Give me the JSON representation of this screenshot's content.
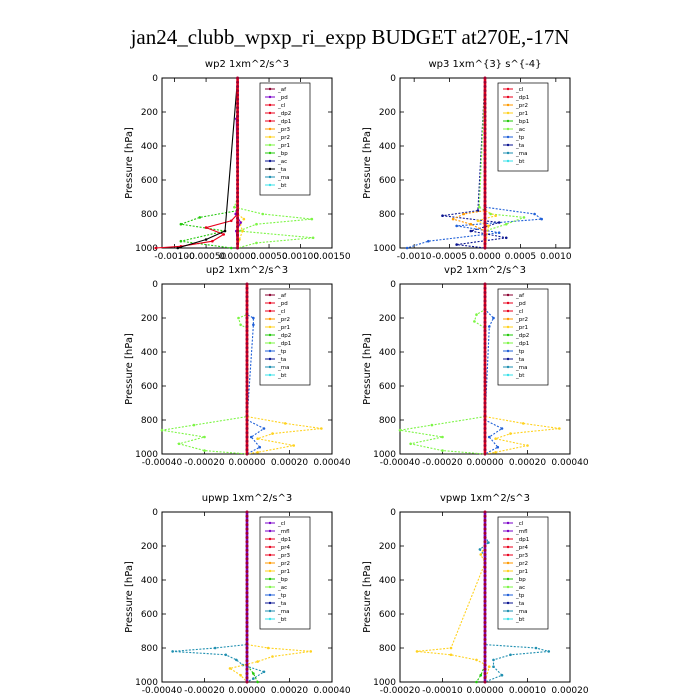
{
  "figure_title": "jan24_clubb_wpxp_ri_expp  BUDGET at270E,-17N",
  "colors": {
    "red": "#e8001c",
    "purple": "#7a00c8",
    "orange": "#ff9a00",
    "yellow": "#ffd21f",
    "green": "#22c80a",
    "lightgreen": "#7cf545",
    "blue": "#2060d8",
    "navy": "#0a1490",
    "darkblue": "#0000a0",
    "cyan": "#38e0e8",
    "black": "#000000",
    "darkred": "#b0001c",
    "teal": "#1f8fb0",
    "maroon": "#8a0030"
  },
  "chart_data": [
    {
      "type": "line",
      "title": "wp2   1xm^2/s^3",
      "ylabel": "Pressure [hPa]",
      "ylim": [
        1000,
        0
      ],
      "y_ticks": [
        0,
        200,
        400,
        600,
        800,
        1000
      ],
      "xlim": [
        -0.0012,
        0.0015
      ],
      "x_ticks": [
        -0.001,
        -0.0005,
        0,
        0.0005,
        0.001,
        0.0015
      ],
      "x_tick_labels": [
        "-0.00100",
        "-0.00050",
        "0.00000",
        "0.00050",
        "0.00100",
        "0.00150"
      ],
      "legend": [
        "_af",
        "_pd",
        "_cl",
        "_dp2",
        "_dp1",
        "_pr3",
        "_pr2",
        "_pr1",
        "_bp",
        "_ac",
        "_ta",
        "_ma",
        "_bt"
      ],
      "legend_colors": [
        "maroon",
        "purple",
        "red",
        "red",
        "red",
        "orange",
        "yellow",
        "lightgreen",
        "green",
        "navy",
        "black",
        "teal",
        "cyan"
      ],
      "series": [
        {
          "name": "_pr1",
          "color": "lightgreen",
          "style": "dashed",
          "p": [
            0,
            700,
            760,
            800,
            830,
            860,
            900,
            940,
            970,
            1000
          ],
          "v": [
            0,
            0,
            -5e-05,
            0.0004,
            0.00118,
            0.0003,
            2e-05,
            0.0012,
            0.0003,
            0
          ]
        },
        {
          "name": "_bp",
          "color": "green",
          "style": "dashed",
          "p": [
            0,
            780,
            820,
            860,
            900,
            960,
            1000
          ],
          "v": [
            0,
            0,
            -0.0006,
            -0.0009,
            -0.0002,
            -0.0009,
            -0.0001
          ]
        },
        {
          "name": "_dp1",
          "color": "red",
          "style": "solid",
          "p": [
            0,
            800,
            840,
            880,
            920,
            960,
            990,
            1000
          ],
          "v": [
            0,
            0,
            -0.0001,
            -0.0005,
            -0.00022,
            -0.0004,
            -0.0009,
            -0.0013
          ]
        },
        {
          "name": "_ta",
          "color": "black",
          "style": "solid",
          "p": [
            0,
            900,
            950,
            1000
          ],
          "v": [
            0,
            -0.0002,
            -0.0005,
            -0.00095
          ]
        },
        {
          "name": "_pr2",
          "color": "yellow",
          "style": "dashed",
          "p": [
            0,
            800,
            830,
            860,
            900,
            950,
            1000
          ],
          "v": [
            0,
            0,
            0.0001,
            4e-05,
            8e-05,
            3e-05,
            0
          ]
        },
        {
          "name": "_pd",
          "color": "purple",
          "style": "solid",
          "p": [
            0,
            200,
            240,
            760,
            800,
            850,
            900,
            1000
          ],
          "v": [
            0,
            0,
            -2e-05,
            0,
            -3e-05,
            5e-05,
            -2e-05,
            0
          ]
        },
        {
          "name": "_cl",
          "color": "red",
          "style": "solid",
          "p": [
            0,
            1000
          ],
          "v": [
            0,
            0
          ]
        }
      ]
    },
    {
      "type": "line",
      "title": "wp3   1xm^{3} s^{-4}",
      "ylabel": "Pressure [hPa]",
      "ylim": [
        1000,
        0
      ],
      "y_ticks": [
        0,
        200,
        400,
        600,
        800,
        1000
      ],
      "xlim": [
        -0.0012,
        0.0012
      ],
      "x_ticks": [
        -0.001,
        -0.0005,
        0,
        0.0005,
        0.001
      ],
      "x_tick_labels": [
        "-0.0010",
        "-0.0005",
        "0.0000",
        "0.0005",
        "0.0010"
      ],
      "legend": [
        "_cl",
        "_dp1",
        "_pr2",
        "_pr1",
        "_bp1",
        "_ac",
        "_tp",
        "_ta",
        "_ma",
        "_bt"
      ],
      "legend_colors": [
        "red",
        "red",
        "orange",
        "yellow",
        "green",
        "lightgreen",
        "blue",
        "navy",
        "teal",
        "cyan"
      ],
      "series": [
        {
          "name": "_tp",
          "color": "blue",
          "style": "dashed",
          "p": [
            0,
            760,
            800,
            830,
            870,
            910,
            960,
            1000
          ],
          "v": [
            0,
            0,
            0.0007,
            0.0008,
            -0.0004,
            0.0002,
            -0.0008,
            -0.0011
          ]
        },
        {
          "name": "_ta",
          "color": "navy",
          "style": "dashed",
          "p": [
            0,
            780,
            810,
            850,
            900,
            940,
            980,
            1000
          ],
          "v": [
            0,
            -0.0001,
            -0.0006,
            0.0002,
            -0.0002,
            0.0003,
            -0.0004,
            0
          ]
        },
        {
          "name": "_ac",
          "color": "lightgreen",
          "style": "dashed",
          "p": [
            0,
            760,
            800,
            820,
            860,
            900,
            1000
          ],
          "v": [
            0,
            -8e-05,
            8e-05,
            0.00055,
            0.0003,
            0,
            0
          ]
        },
        {
          "name": "_pr2",
          "color": "orange",
          "style": "dashed",
          "p": [
            0,
            780,
            800,
            830,
            860,
            900,
            1000
          ],
          "v": [
            0,
            0,
            -0.0003,
            -0.00045,
            -0.0002,
            0,
            0
          ]
        },
        {
          "name": "_pr1",
          "color": "yellow",
          "style": "dashed",
          "p": [
            0,
            780,
            810,
            840,
            870,
            1000
          ],
          "v": [
            0,
            0,
            0.00015,
            -0.0001,
            5e-05,
            0
          ]
        },
        {
          "name": "_dp1",
          "color": "red",
          "style": "solid",
          "p": [
            0,
            1000
          ],
          "v": [
            0,
            0
          ]
        }
      ]
    },
    {
      "type": "line",
      "title": "up2   1xm^2/s^3",
      "ylabel": "Pressure [hPa]",
      "ylim": [
        1000,
        0
      ],
      "y_ticks": [
        0,
        200,
        400,
        600,
        800,
        1000
      ],
      "xlim": [
        -0.0004,
        0.0004
      ],
      "x_ticks": [
        -0.0004,
        -0.0002,
        0,
        0.0002,
        0.0004
      ],
      "x_tick_labels": [
        "-0.00040",
        "-0.00020",
        "0.00000",
        "0.00020",
        "0.00040"
      ],
      "legend": [
        "_af",
        "_pd",
        "_cl",
        "_pr2",
        "_pr1",
        "_dp2",
        "_dp1",
        "_tp",
        "_ta",
        "_ma",
        "_bt"
      ],
      "legend_colors": [
        "maroon",
        "red",
        "red",
        "orange",
        "yellow",
        "green",
        "lightgreen",
        "blue",
        "navy",
        "teal",
        "cyan"
      ],
      "series": [
        {
          "name": "_dp1",
          "color": "lightgreen",
          "style": "dashed",
          "p": [
            0,
            180,
            200,
            240,
            260,
            780,
            830,
            860,
            900,
            940,
            980,
            1000
          ],
          "v": [
            0,
            0,
            -4e-05,
            -3e-05,
            0,
            0,
            -0.00025,
            -0.0004,
            -0.0002,
            -0.00032,
            -0.0002,
            0
          ]
        },
        {
          "name": "_pr1",
          "color": "yellow",
          "style": "dashed",
          "p": [
            0,
            780,
            820,
            850,
            880,
            910,
            950,
            990,
            1000
          ],
          "v": [
            0,
            0,
            0.00018,
            0.00035,
            0.00012,
            5e-05,
            0.00022,
            5e-05,
            0
          ]
        },
        {
          "name": "_tp",
          "color": "blue",
          "style": "dashed",
          "p": [
            0,
            180,
            200,
            240,
            800,
            850,
            900,
            960,
            1000
          ],
          "v": [
            0,
            0,
            3e-05,
            3e-05,
            0,
            8e-05,
            2e-05,
            6e-05,
            0
          ]
        },
        {
          "name": "_cl",
          "color": "red",
          "style": "solid",
          "p": [
            0,
            1000
          ],
          "v": [
            0,
            0
          ]
        }
      ]
    },
    {
      "type": "line",
      "title": "vp2   1xm^2/s^3",
      "ylabel": "Pressure [hPa]",
      "ylim": [
        1000,
        0
      ],
      "y_ticks": [
        0,
        200,
        400,
        600,
        800,
        1000
      ],
      "xlim": [
        -0.0004,
        0.0004
      ],
      "x_ticks": [
        -0.0004,
        -0.0002,
        0,
        0.0002,
        0.0004
      ],
      "x_tick_labels": [
        "-0.00040",
        "-0.00020",
        "0.00000",
        "0.00020",
        "0.00040"
      ],
      "legend": [
        "_af",
        "_pd",
        "_cl",
        "_pr2",
        "_pr1",
        "_dp2",
        "_dp1",
        "_tp",
        "_ta",
        "_ma",
        "_bt"
      ],
      "legend_colors": [
        "maroon",
        "red",
        "red",
        "orange",
        "yellow",
        "green",
        "lightgreen",
        "blue",
        "navy",
        "teal",
        "cyan"
      ],
      "series": [
        {
          "name": "_dp1",
          "color": "lightgreen",
          "style": "dashed",
          "p": [
            0,
            150,
            180,
            220,
            260,
            780,
            830,
            860,
            900,
            940,
            980,
            1000
          ],
          "v": [
            0,
            0,
            -4e-05,
            -5e-05,
            0,
            0,
            -0.00025,
            -0.0004,
            -0.0002,
            -0.00035,
            -0.0002,
            0
          ]
        },
        {
          "name": "_pr1",
          "color": "yellow",
          "style": "dashed",
          "p": [
            0,
            780,
            820,
            850,
            880,
            910,
            950,
            990,
            1000
          ],
          "v": [
            0,
            0,
            0.00018,
            0.00035,
            0.00012,
            5e-05,
            0.0002,
            5e-05,
            0
          ]
        },
        {
          "name": "_tp",
          "color": "blue",
          "style": "dashed",
          "p": [
            0,
            150,
            200,
            250,
            800,
            850,
            900,
            960,
            1000
          ],
          "v": [
            0,
            0,
            4e-05,
            2e-05,
            0,
            8e-05,
            2e-05,
            6e-05,
            0
          ]
        },
        {
          "name": "_cl",
          "color": "red",
          "style": "solid",
          "p": [
            0,
            1000
          ],
          "v": [
            0,
            0
          ]
        }
      ]
    },
    {
      "type": "line",
      "title": "upwp   1xm^2/s^3",
      "ylabel": "Pressure [hPa]",
      "ylim": [
        1000,
        0
      ],
      "y_ticks": [
        0,
        200,
        400,
        600,
        800,
        1000
      ],
      "xlim": [
        -0.0004,
        0.0004
      ],
      "x_ticks": [
        -0.0004,
        -0.0002,
        0,
        0.0002,
        0.0004
      ],
      "x_tick_labels": [
        "-0.00040",
        "-0.00020",
        "0.00000",
        "0.00020",
        "0.00040"
      ],
      "legend": [
        "_cl",
        "_mfl",
        "_dp1",
        "_pr4",
        "_pr3",
        "_pr2",
        "_pr1",
        "_bp",
        "_ac",
        "_tp",
        "_ta",
        "_ma",
        "_bt"
      ],
      "legend_colors": [
        "purple",
        "purple",
        "red",
        "red",
        "red",
        "orange",
        "yellow",
        "green",
        "lightgreen",
        "blue",
        "navy",
        "teal",
        "cyan"
      ],
      "series": [
        {
          "name": "_ta",
          "color": "teal",
          "style": "dashed",
          "p": [
            0,
            780,
            800,
            820,
            840,
            870,
            900,
            940,
            980,
            1000
          ],
          "v": [
            0,
            0,
            -0.00015,
            -0.00035,
            -0.0001,
            -5e-05,
            -2e-05,
            8e-05,
            3e-05,
            0
          ]
        },
        {
          "name": "_pr1",
          "color": "yellow",
          "style": "dashed",
          "p": [
            0,
            780,
            800,
            820,
            850,
            880,
            920,
            960,
            1000
          ],
          "v": [
            0,
            0,
            0.0001,
            0.0003,
            0.00012,
            5e-05,
            -8e-05,
            -3e-05,
            0
          ]
        },
        {
          "name": "_bp",
          "color": "green",
          "style": "dashed",
          "p": [
            0,
            900,
            950,
            1000
          ],
          "v": [
            0,
            0,
            3e-05,
            5e-05
          ]
        },
        {
          "name": "_cl",
          "color": "purple",
          "style": "solid",
          "p": [
            0,
            1000
          ],
          "v": [
            0,
            0
          ]
        }
      ]
    },
    {
      "type": "line",
      "title": "vpwp   1xm^2/s^3",
      "ylabel": "Pressure [hPa]",
      "ylim": [
        1000,
        0
      ],
      "y_ticks": [
        0,
        200,
        400,
        600,
        800,
        1000
      ],
      "xlim": [
        -0.0002,
        0.0002
      ],
      "x_ticks": [
        -0.0002,
        -0.0001,
        0,
        0.0001,
        0.0002
      ],
      "x_tick_labels": [
        "-0.00020",
        "-0.00010",
        "0.00000",
        "0.00010",
        "0.00020"
      ],
      "legend": [
        "_cl",
        "_mfl",
        "_dp1",
        "_pr4",
        "_pr3",
        "_pr2",
        "_pr1",
        "_bp",
        "_ac",
        "_tp",
        "_ta",
        "_ma",
        "_bt"
      ],
      "legend_colors": [
        "purple",
        "purple",
        "red",
        "red",
        "red",
        "orange",
        "yellow",
        "green",
        "lightgreen",
        "blue",
        "navy",
        "teal",
        "cyan"
      ],
      "series": [
        {
          "name": "_ta",
          "color": "teal",
          "style": "dashed",
          "p": [
            0,
            140,
            180,
            220,
            260,
            780,
            800,
            820,
            840,
            870,
            910,
            960,
            1000
          ],
          "v": [
            0,
            0,
            8e-06,
            -1.2e-05,
            0,
            0,
            0.00012,
            0.00015,
            6e-05,
            2e-05,
            2e-05,
            4e-05,
            0
          ]
        },
        {
          "name": "_pr1",
          "color": "yellow",
          "style": "dashed",
          "p": [
            0,
            200,
            250,
            300,
            800,
            820,
            840,
            870,
            910,
            1000
          ],
          "v": [
            0,
            0,
            -1e-05,
            0,
            -8e-05,
            -0.00016,
            -8e-05,
            -2e-05,
            1e-05,
            0
          ]
        },
        {
          "name": "_bp",
          "color": "green",
          "style": "dashed",
          "p": [
            0,
            900,
            960,
            1000
          ],
          "v": [
            0,
            0,
            -1e-05,
            -2e-05
          ]
        },
        {
          "name": "_cl",
          "color": "purple",
          "style": "solid",
          "p": [
            0,
            1000
          ],
          "v": [
            0,
            0
          ]
        }
      ]
    }
  ]
}
